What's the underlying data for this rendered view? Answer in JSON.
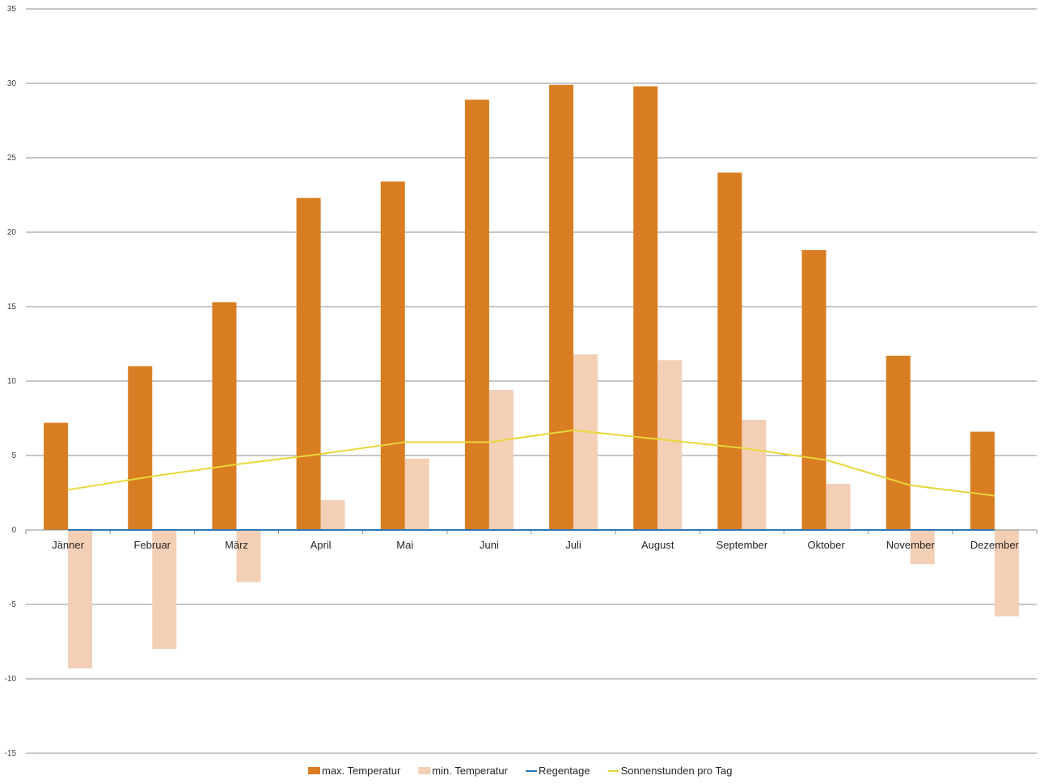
{
  "chart_data": {
    "type": "bar",
    "categories": [
      "Jänner",
      "Februar",
      "März",
      "April",
      "Mai",
      "Juni",
      "Juli",
      "August",
      "September",
      "Oktober",
      "November",
      "Dezember"
    ],
    "series": [
      {
        "name": "max. Temperatur",
        "type": "bar",
        "color": "#d97d22",
        "values": [
          7.2,
          11.0,
          15.3,
          22.3,
          23.4,
          28.9,
          29.9,
          29.8,
          24.0,
          18.8,
          11.7,
          6.6
        ]
      },
      {
        "name": "min. Temperatur",
        "type": "bar",
        "color": "#f3cfb5",
        "values": [
          -9.3,
          -8.0,
          -3.5,
          2.0,
          4.8,
          9.4,
          11.8,
          11.4,
          7.4,
          3.1,
          -2.3,
          -5.8
        ]
      },
      {
        "name": "Regentage",
        "type": "line",
        "color": "#2e75b6",
        "values": [
          0,
          0,
          0,
          0,
          0,
          0,
          0,
          0,
          0,
          0,
          0,
          0
        ]
      },
      {
        "name": "Sonnenstunden pro Tag",
        "type": "line",
        "color": "#e8d73a",
        "values": [
          2.7,
          3.6,
          4.4,
          5.1,
          5.9,
          5.9,
          6.7,
          6.1,
          5.5,
          4.7,
          3.0,
          2.3
        ]
      }
    ],
    "ylim": [
      -15,
      35
    ],
    "yticks": [
      35,
      30,
      25,
      20,
      15,
      10,
      5,
      0,
      -5,
      -10,
      -15
    ],
    "grid": true,
    "legend_position": "bottom"
  }
}
